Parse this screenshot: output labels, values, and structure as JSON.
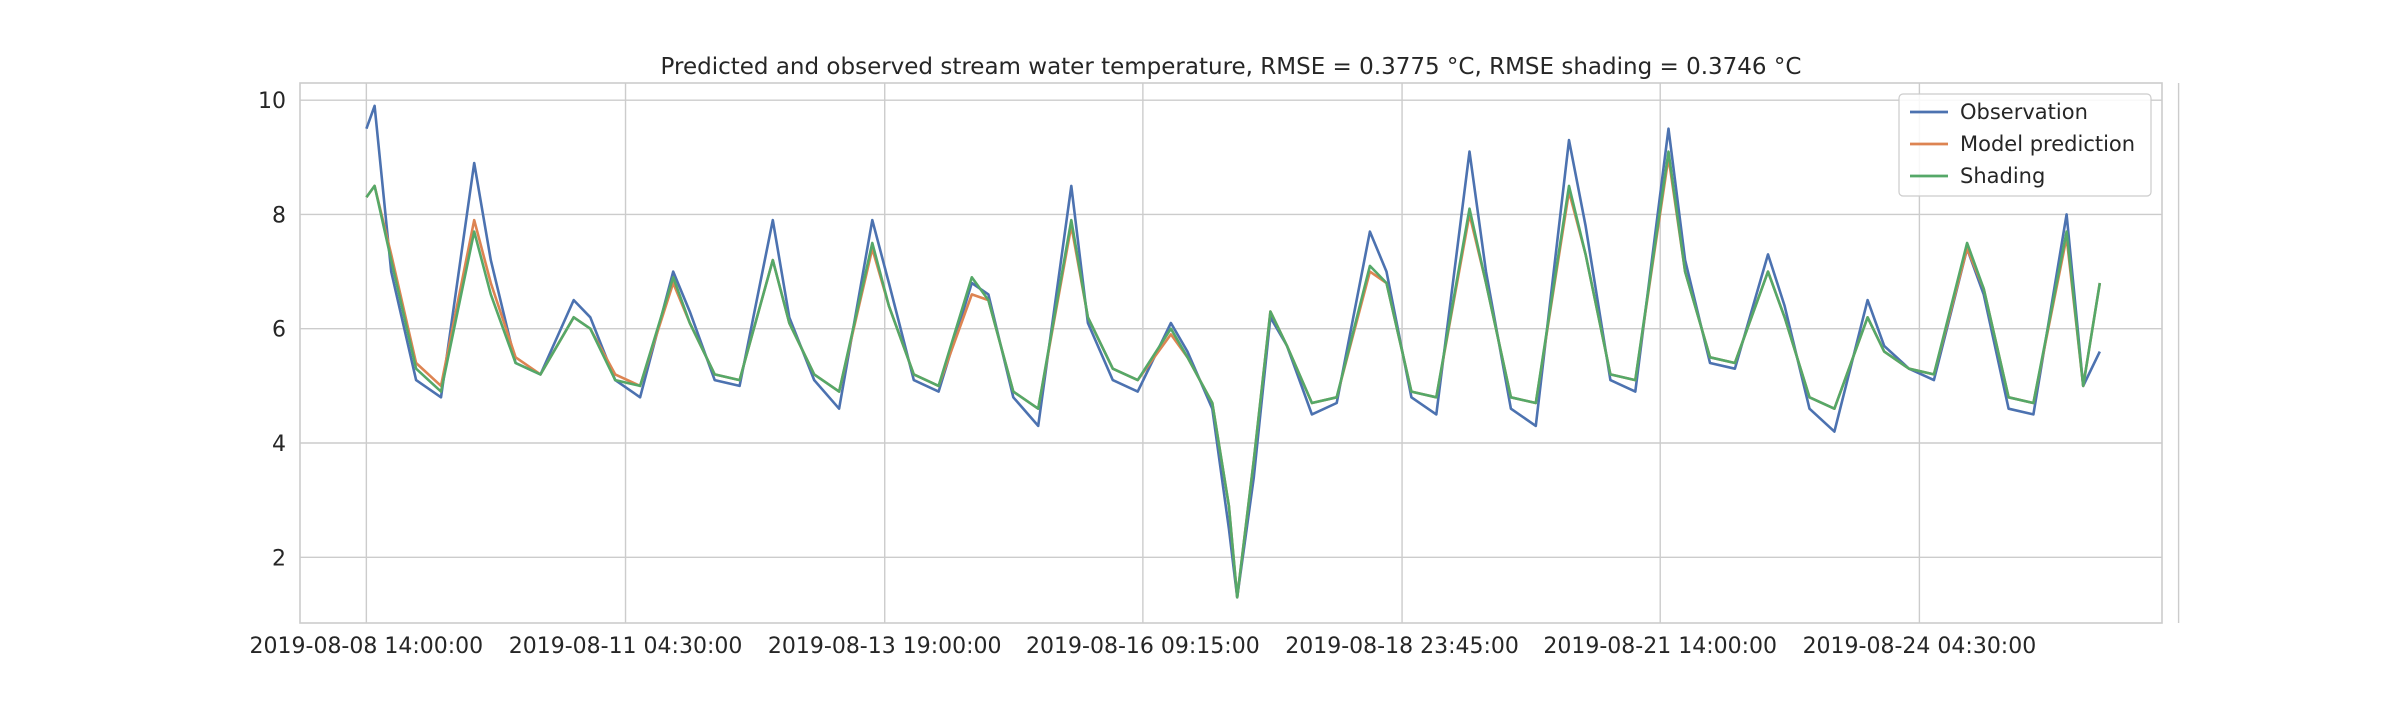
{
  "chart_data": {
    "type": "line",
    "title": "Predicted and observed stream water temperature, RMSE = 0.3775 °C, RMSE shading = 0.3746 °C",
    "xlabel": "",
    "ylabel": "",
    "x_start": "2019-08-08 14:00:00",
    "x_end": "2019-08-26 00:00:00",
    "xlim": [
      "2019-08-07 22:00:00",
      "2019-08-26 15:00:00"
    ],
    "ylim": [
      0.85,
      10.3
    ],
    "x_ticks": [
      "2019-08-08 14:00:00",
      "2019-08-11 04:30:00",
      "2019-08-13 19:00:00",
      "2019-08-16 09:15:00",
      "2019-08-18 23:45:00",
      "2019-08-21 14:00:00",
      "2019-08-24 04:30:00",
      "2019-08-26 19:00:00"
    ],
    "x_tick_labels": [
      "2019-08-08 14:00:00",
      "2019-08-11 04:30:00",
      "2019-08-13 19:00:00",
      "2019-08-16 09:15:00",
      "2019-08-18 23:45:00",
      "2019-08-21 14:00:00",
      "2019-08-24 04:30:00",
      ""
    ],
    "y_ticks": [
      2,
      4,
      6,
      8,
      10
    ],
    "y_tick_labels": [
      "2",
      "4",
      "6",
      "8",
      "10"
    ],
    "grid": true,
    "legend_position": "top-right",
    "x": [
      "2019-08-08 14:00:00",
      "2019-08-08 16:00:00",
      "2019-08-08 20:00:00",
      "2019-08-09 02:00:00",
      "2019-08-09 08:00:00",
      "2019-08-09 16:00:00",
      "2019-08-09 20:00:00",
      "2019-08-10 02:00:00",
      "2019-08-10 08:00:00",
      "2019-08-10 16:00:00",
      "2019-08-10 20:00:00",
      "2019-08-11 02:00:00",
      "2019-08-11 08:00:00",
      "2019-08-11 16:00:00",
      "2019-08-11 20:00:00",
      "2019-08-12 02:00:00",
      "2019-08-12 08:00:00",
      "2019-08-12 16:00:00",
      "2019-08-12 20:00:00",
      "2019-08-13 02:00:00",
      "2019-08-13 08:00:00",
      "2019-08-13 16:00:00",
      "2019-08-13 20:00:00",
      "2019-08-14 02:00:00",
      "2019-08-14 08:00:00",
      "2019-08-14 16:00:00",
      "2019-08-14 20:00:00",
      "2019-08-15 02:00:00",
      "2019-08-15 08:00:00",
      "2019-08-15 16:00:00",
      "2019-08-15 20:00:00",
      "2019-08-16 02:00:00",
      "2019-08-16 08:00:00",
      "2019-08-16 16:00:00",
      "2019-08-16 20:00:00",
      "2019-08-17 02:00:00",
      "2019-08-17 06:00:00",
      "2019-08-17 08:00:00",
      "2019-08-17 12:00:00",
      "2019-08-17 16:00:00",
      "2019-08-17 20:00:00",
      "2019-08-18 02:00:00",
      "2019-08-18 08:00:00",
      "2019-08-18 16:00:00",
      "2019-08-18 20:00:00",
      "2019-08-19 02:00:00",
      "2019-08-19 08:00:00",
      "2019-08-19 16:00:00",
      "2019-08-19 20:00:00",
      "2019-08-20 02:00:00",
      "2019-08-20 08:00:00",
      "2019-08-20 16:00:00",
      "2019-08-20 20:00:00",
      "2019-08-21 02:00:00",
      "2019-08-21 08:00:00",
      "2019-08-21 16:00:00",
      "2019-08-21 20:00:00",
      "2019-08-22 02:00:00",
      "2019-08-22 08:00:00",
      "2019-08-22 16:00:00",
      "2019-08-22 20:00:00",
      "2019-08-23 02:00:00",
      "2019-08-23 08:00:00",
      "2019-08-23 16:00:00",
      "2019-08-23 20:00:00",
      "2019-08-24 02:00:00",
      "2019-08-24 08:00:00",
      "2019-08-24 16:00:00",
      "2019-08-24 20:00:00",
      "2019-08-25 02:00:00",
      "2019-08-25 08:00:00",
      "2019-08-25 16:00:00",
      "2019-08-25 20:00:00",
      "2019-08-26 00:00:00"
    ],
    "series": [
      {
        "name": "Observation",
        "color": "#4c72b0",
        "values": [
          9.5,
          9.9,
          7.0,
          5.1,
          4.8,
          8.9,
          7.2,
          5.4,
          5.2,
          6.5,
          6.2,
          5.1,
          4.8,
          7.0,
          6.3,
          5.1,
          5.0,
          7.9,
          6.2,
          5.1,
          4.6,
          7.9,
          6.8,
          5.1,
          4.9,
          6.8,
          6.6,
          4.8,
          4.3,
          8.5,
          6.1,
          5.1,
          4.9,
          6.1,
          5.6,
          4.6,
          2.5,
          1.3,
          3.4,
          6.2,
          5.7,
          4.5,
          4.7,
          7.7,
          7.0,
          4.8,
          4.5,
          9.1,
          7.0,
          4.6,
          4.3,
          9.3,
          7.8,
          5.1,
          4.9,
          9.5,
          7.2,
          5.4,
          5.3,
          7.3,
          6.4,
          4.6,
          4.2,
          6.5,
          5.7,
          5.3,
          5.1,
          7.4,
          6.6,
          4.6,
          4.5,
          8.0,
          5.0,
          5.6
        ]
      },
      {
        "name": "Model prediction",
        "color": "#dd8452",
        "values": [
          8.3,
          8.5,
          7.3,
          5.4,
          5.0,
          7.9,
          6.8,
          5.5,
          5.2,
          6.2,
          6.0,
          5.2,
          5.0,
          6.8,
          6.1,
          5.2,
          5.1,
          7.2,
          6.1,
          5.2,
          4.9,
          7.4,
          6.4,
          5.2,
          5.0,
          6.6,
          6.5,
          4.9,
          4.6,
          7.8,
          6.2,
          5.3,
          5.1,
          5.9,
          5.5,
          4.7,
          2.9,
          1.3,
          3.7,
          6.3,
          5.7,
          4.7,
          4.8,
          7.0,
          6.8,
          4.9,
          4.8,
          8.0,
          6.8,
          4.8,
          4.7,
          8.4,
          7.3,
          5.2,
          5.1,
          9.0,
          7.0,
          5.5,
          5.4,
          7.0,
          6.2,
          4.8,
          4.6,
          6.2,
          5.6,
          5.3,
          5.2,
          7.4,
          6.7,
          4.8,
          4.7,
          7.6,
          5.0,
          6.8
        ]
      },
      {
        "name": "Shading",
        "color": "#55a868",
        "values": [
          8.3,
          8.5,
          7.2,
          5.3,
          4.9,
          7.7,
          6.6,
          5.4,
          5.2,
          6.2,
          6.0,
          5.1,
          5.0,
          6.9,
          6.1,
          5.2,
          5.1,
          7.2,
          6.1,
          5.2,
          4.9,
          7.5,
          6.4,
          5.2,
          5.0,
          6.9,
          6.5,
          4.9,
          4.6,
          7.9,
          6.2,
          5.3,
          5.1,
          6.0,
          5.5,
          4.7,
          2.9,
          1.3,
          3.7,
          6.3,
          5.7,
          4.7,
          4.8,
          7.1,
          6.8,
          4.9,
          4.8,
          8.1,
          6.8,
          4.8,
          4.7,
          8.5,
          7.3,
          5.2,
          5.1,
          9.1,
          7.0,
          5.5,
          5.4,
          7.0,
          6.2,
          4.8,
          4.6,
          6.2,
          5.6,
          5.3,
          5.2,
          7.5,
          6.7,
          4.8,
          4.7,
          7.7,
          5.0,
          6.8
        ]
      }
    ]
  }
}
